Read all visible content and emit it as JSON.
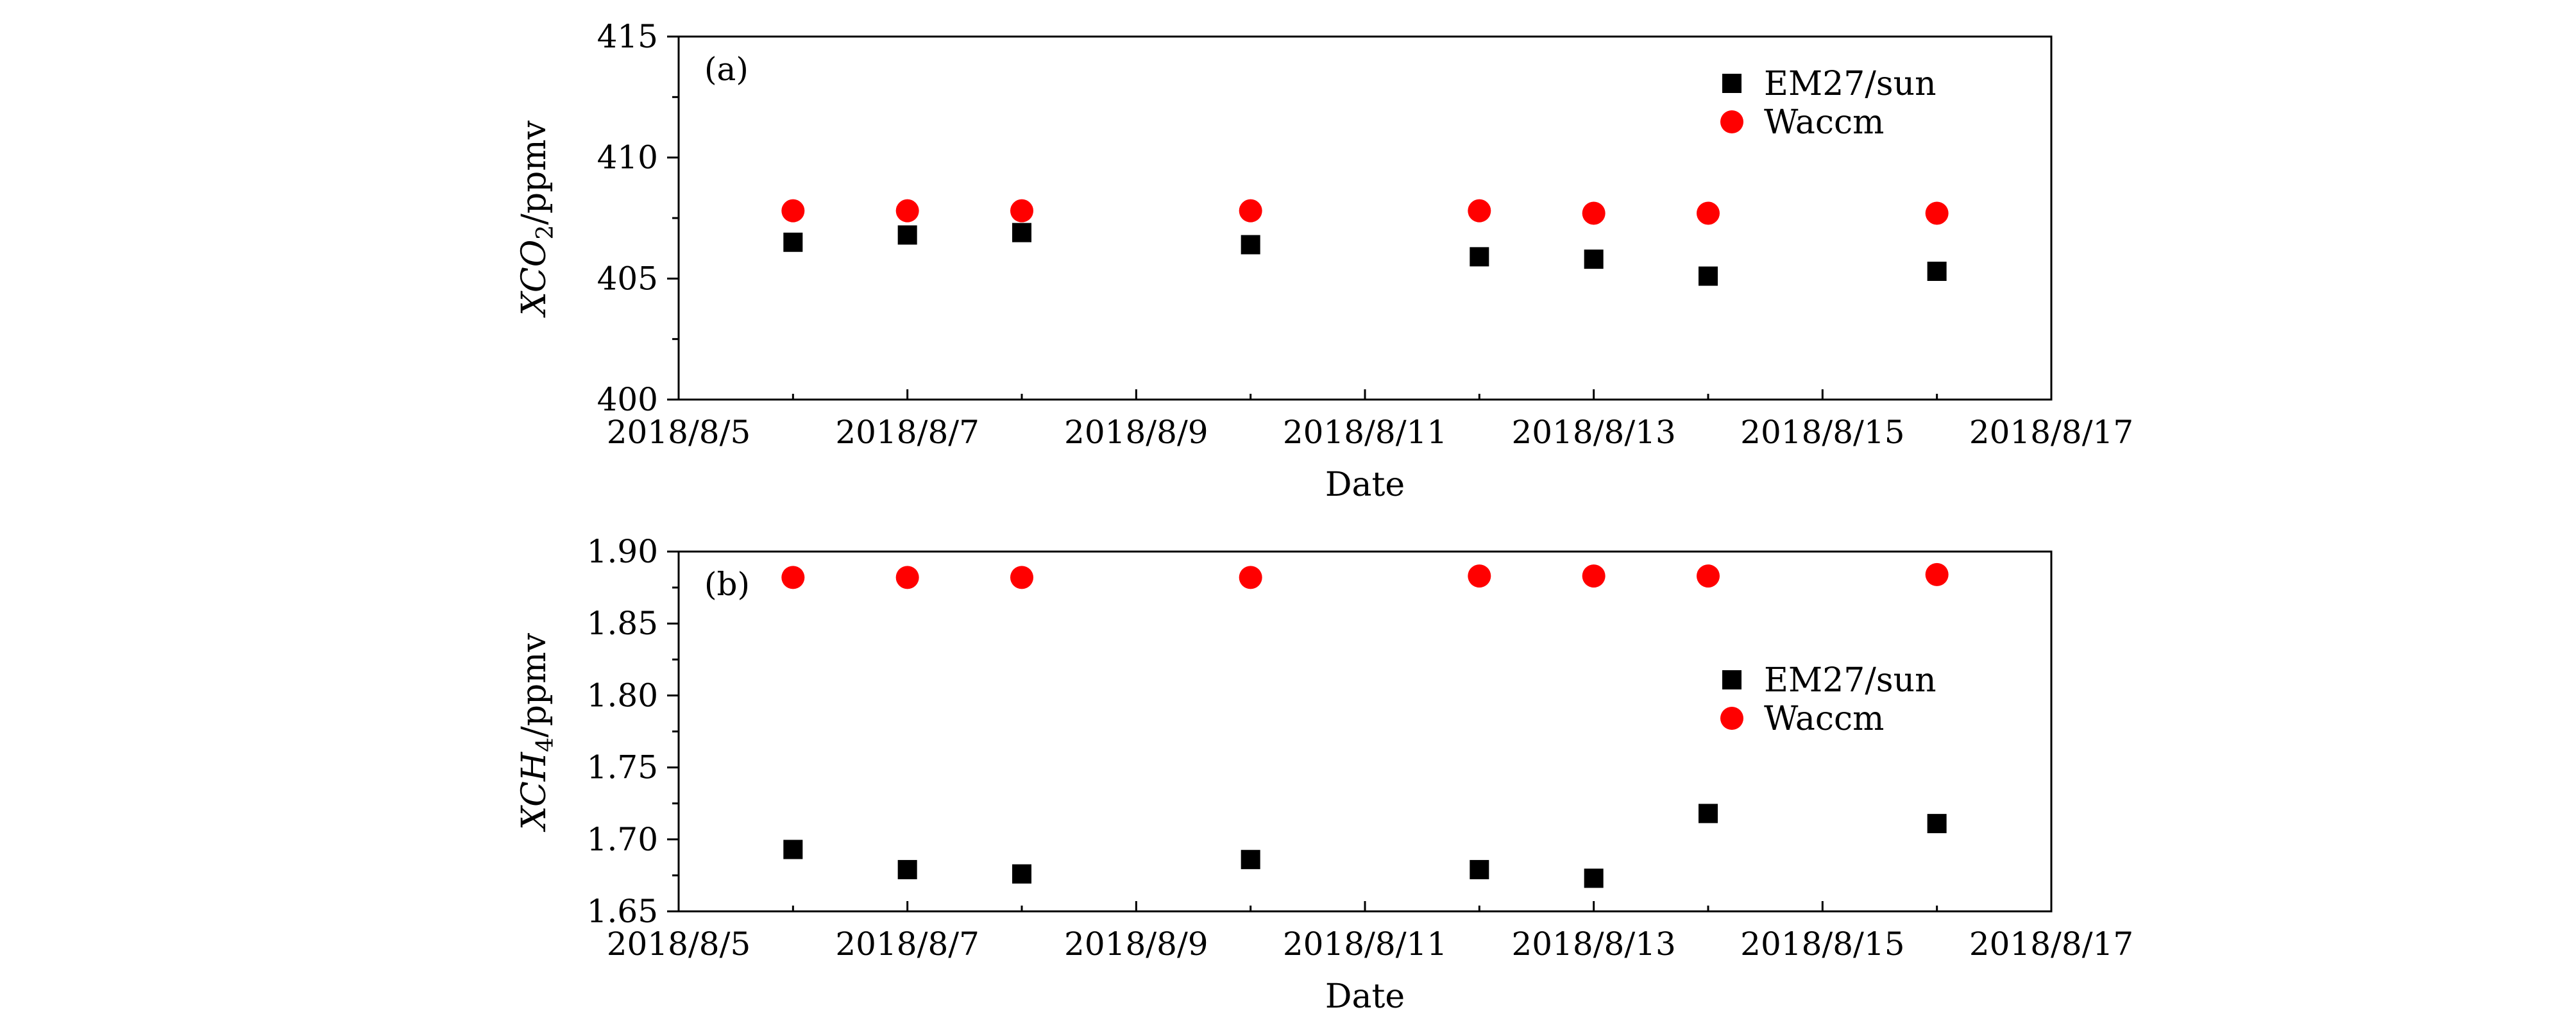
{
  "chart_data": [
    {
      "type": "scatter",
      "panel_label": "(a)",
      "xlabel": "Date",
      "ylabel_main": "XCO",
      "ylabel_sub": "2",
      "ylabel_unit": "/ppmv",
      "x_ticks": [
        "2018/8/5",
        "2018/8/7",
        "2018/8/9",
        "2018/8/11",
        "2018/8/13",
        "2018/8/15",
        "2018/8/17"
      ],
      "xlim": [
        "2018/8/5",
        "2018/8/17"
      ],
      "y_ticks": [
        "400",
        "405",
        "410",
        "415"
      ],
      "ylim": [
        400,
        415
      ],
      "legend_position": "top-right",
      "series": [
        {
          "name": "EM27/sun",
          "marker": "square",
          "color": "#000000",
          "x": [
            "2018/8/6",
            "2018/8/7",
            "2018/8/8",
            "2018/8/10",
            "2018/8/12",
            "2018/8/13",
            "2018/8/14",
            "2018/8/16"
          ],
          "y": [
            406.5,
            406.8,
            406.9,
            406.4,
            405.9,
            405.8,
            405.1,
            405.3
          ]
        },
        {
          "name": "Waccm",
          "marker": "circle",
          "color": "#ff0000",
          "x": [
            "2018/8/6",
            "2018/8/7",
            "2018/8/8",
            "2018/8/10",
            "2018/8/12",
            "2018/8/13",
            "2018/8/14",
            "2018/8/16"
          ],
          "y": [
            407.8,
            407.8,
            407.8,
            407.8,
            407.8,
            407.7,
            407.7,
            407.7
          ]
        }
      ]
    },
    {
      "type": "scatter",
      "panel_label": "(b)",
      "xlabel": "Date",
      "ylabel_main": "XCH",
      "ylabel_sub": "4",
      "ylabel_unit": "/ppmv",
      "x_ticks": [
        "2018/8/5",
        "2018/8/7",
        "2018/8/9",
        "2018/8/11",
        "2018/8/13",
        "2018/8/15",
        "2018/8/17"
      ],
      "xlim": [
        "2018/8/5",
        "2018/8/17"
      ],
      "y_ticks": [
        "1.65",
        "1.70",
        "1.75",
        "1.80",
        "1.85",
        "1.90"
      ],
      "ylim": [
        1.65,
        1.9
      ],
      "legend_position": "center-right",
      "series": [
        {
          "name": "EM27/sun",
          "marker": "square",
          "color": "#000000",
          "x": [
            "2018/8/6",
            "2018/8/7",
            "2018/8/8",
            "2018/8/10",
            "2018/8/12",
            "2018/8/13",
            "2018/8/14",
            "2018/8/16"
          ],
          "y": [
            1.693,
            1.679,
            1.676,
            1.686,
            1.679,
            1.673,
            1.718,
            1.711
          ]
        },
        {
          "name": "Waccm",
          "marker": "circle",
          "color": "#ff0000",
          "x": [
            "2018/8/6",
            "2018/8/7",
            "2018/8/8",
            "2018/8/10",
            "2018/8/12",
            "2018/8/13",
            "2018/8/14",
            "2018/8/16"
          ],
          "y": [
            1.882,
            1.882,
            1.882,
            1.882,
            1.883,
            1.883,
            1.883,
            1.884
          ]
        }
      ]
    }
  ]
}
